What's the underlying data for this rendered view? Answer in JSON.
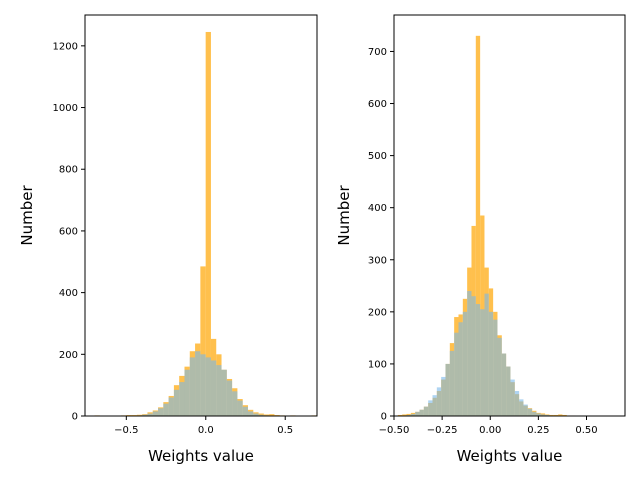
{
  "chart_data": [
    {
      "type": "bar",
      "subtype": "overlaid-histogram",
      "xlabel": "Weights value",
      "ylabel": "Number",
      "xlim": [
        -0.76,
        0.7
      ],
      "ylim": [
        0,
        1300
      ],
      "xticks": [
        -0.5,
        0.0,
        0.5
      ],
      "xtick_labels": [
        "−0.5",
        "0.0",
        "0.5"
      ],
      "yticks": [
        0,
        200,
        400,
        600,
        800,
        1000,
        1200
      ],
      "ytick_labels": [
        "0",
        "200",
        "400",
        "600",
        "800",
        "1000",
        "1200"
      ],
      "grid": false,
      "series": [
        {
          "name": "orange",
          "color": "#ffb52e",
          "opacity": 0.85,
          "bin_start": -0.7,
          "bin_width": 0.0333,
          "values": [
            2,
            1,
            0,
            0,
            1,
            2,
            3,
            3,
            4,
            6,
            12,
            18,
            28,
            45,
            65,
            100,
            130,
            160,
            210,
            235,
            485,
            1245,
            250,
            200,
            150,
            120,
            90,
            55,
            35,
            20,
            12,
            8,
            5,
            6,
            3,
            2,
            1,
            2,
            1,
            0,
            1,
            2
          ]
        },
        {
          "name": "blue",
          "color": "#7ab8ea",
          "opacity": 0.6,
          "bin_start": -0.7,
          "bin_width": 0.0333,
          "values": [
            0,
            0,
            0,
            0,
            0,
            0,
            0,
            1,
            2,
            4,
            8,
            15,
            25,
            40,
            60,
            85,
            110,
            150,
            190,
            210,
            200,
            190,
            180,
            165,
            150,
            115,
            80,
            50,
            30,
            15,
            8,
            4,
            2,
            1,
            0,
            0,
            0,
            0,
            0,
            0,
            0,
            0
          ]
        }
      ]
    },
    {
      "type": "bar",
      "subtype": "overlaid-histogram",
      "xlabel": "Weights value",
      "ylabel": "Number",
      "xlim": [
        -0.5,
        0.7
      ],
      "ylim": [
        0,
        770
      ],
      "xticks": [
        -0.5,
        -0.25,
        0.0,
        0.25,
        0.5
      ],
      "xtick_labels": [
        "−0.50",
        "−0.25",
        "0.00",
        "0.25",
        "0.50"
      ],
      "yticks": [
        0,
        100,
        200,
        300,
        400,
        500,
        600,
        700
      ],
      "ytick_labels": [
        "0",
        "100",
        "200",
        "300",
        "400",
        "500",
        "600",
        "700"
      ],
      "grid": false,
      "series": [
        {
          "name": "orange",
          "color": "#ffb52e",
          "opacity": 0.85,
          "bin_start": -0.48,
          "bin_width": 0.0225,
          "values": [
            2,
            3,
            4,
            6,
            8,
            12,
            18,
            25,
            35,
            48,
            70,
            100,
            140,
            190,
            195,
            225,
            285,
            365,
            730,
            385,
            285,
            245,
            200,
            155,
            120,
            95,
            65,
            42,
            28,
            20,
            15,
            10,
            6,
            5,
            3,
            2,
            2,
            3,
            2,
            1,
            1
          ]
        },
        {
          "name": "blue",
          "color": "#7ab8ea",
          "opacity": 0.6,
          "bin_start": -0.48,
          "bin_width": 0.0225,
          "values": [
            0,
            1,
            2,
            4,
            8,
            12,
            18,
            30,
            40,
            55,
            75,
            100,
            125,
            160,
            180,
            200,
            240,
            230,
            215,
            205,
            235,
            200,
            185,
            150,
            120,
            95,
            70,
            48,
            32,
            22,
            14,
            8,
            5,
            3,
            2,
            1,
            0,
            0,
            0,
            0,
            0
          ]
        }
      ]
    }
  ]
}
